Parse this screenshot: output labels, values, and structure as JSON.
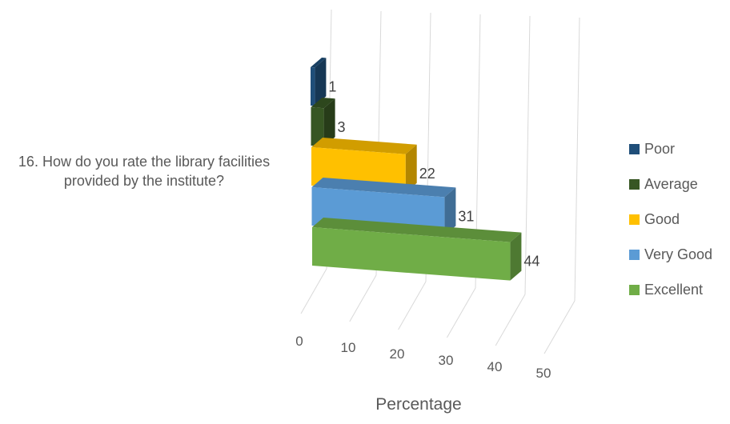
{
  "chart_data": {
    "type": "bar",
    "orientation": "horizontal",
    "style": "3d-stacked",
    "categories": [
      "16. How do you rate the library facilities provided by the institute?"
    ],
    "series": [
      {
        "name": "Excellent",
        "values": [
          44
        ],
        "color": "#70ad47"
      },
      {
        "name": "Very Good",
        "values": [
          31
        ],
        "color": "#5b9bd5"
      },
      {
        "name": "Good",
        "values": [
          22
        ],
        "color": "#ffc000"
      },
      {
        "name": "Average",
        "values": [
          3
        ],
        "color": "#375623"
      },
      {
        "name": "Poor",
        "values": [
          1
        ],
        "color": "#1f4e79"
      }
    ],
    "legend_order": [
      "Poor",
      "Average",
      "Good",
      "Very Good",
      "Excellent"
    ],
    "xlabel": "Percentage",
    "xlim": [
      0,
      50
    ],
    "xticks": [
      "0",
      "10",
      "20",
      "30",
      "40",
      "50"
    ],
    "grid": true,
    "legend_position": "right",
    "data_labels": true
  }
}
